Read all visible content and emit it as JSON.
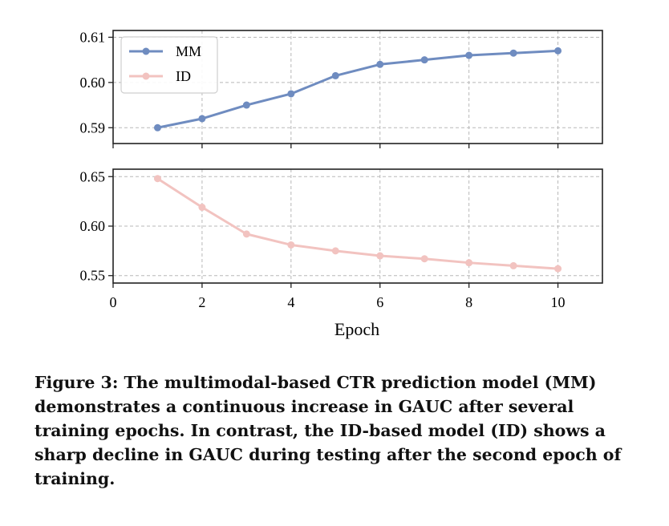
{
  "chart_data": {
    "type": "line",
    "xlabel": "Epoch",
    "xlim": [
      0,
      11
    ],
    "xticks": [
      "0",
      "2",
      "4",
      "6",
      "8",
      "10"
    ],
    "grid": true,
    "legend_position": "top-left",
    "panels": [
      {
        "ylim": [
          0.5865,
          0.6115
        ],
        "yticks": [
          "0.59",
          "0.60",
          "0.61"
        ],
        "series": [
          {
            "name": "MM",
            "color": "#6f8cc0",
            "x": [
              1,
              2,
              3,
              4,
              5,
              6,
              7,
              8,
              9,
              10
            ],
            "y": [
              0.59,
              0.592,
              0.595,
              0.5975,
              0.6015,
              0.604,
              0.605,
              0.606,
              0.6065,
              0.607
            ]
          }
        ]
      },
      {
        "ylim": [
          0.5425,
          0.6575
        ],
        "yticks": [
          "0.55",
          "0.60",
          "0.65"
        ],
        "series": [
          {
            "name": "ID",
            "color": "#f2c3c0",
            "x": [
              1,
              2,
              3,
              4,
              5,
              6,
              7,
              8,
              9,
              10
            ],
            "y": [
              0.648,
              0.619,
              0.592,
              0.581,
              0.575,
              0.57,
              0.567,
              0.563,
              0.56,
              0.557
            ]
          }
        ]
      }
    ],
    "legend": [
      {
        "name": "MM",
        "color": "#6f8cc0"
      },
      {
        "name": "ID",
        "color": "#f2c3c0"
      }
    ]
  },
  "caption": "Figure 3: The multimodal-based CTR prediction model (MM) demonstrates a continuous increase in GAUC after several training epochs. In contrast, the ID-based model (ID) shows a sharp decline in GAUC during testing after the second epoch of training."
}
